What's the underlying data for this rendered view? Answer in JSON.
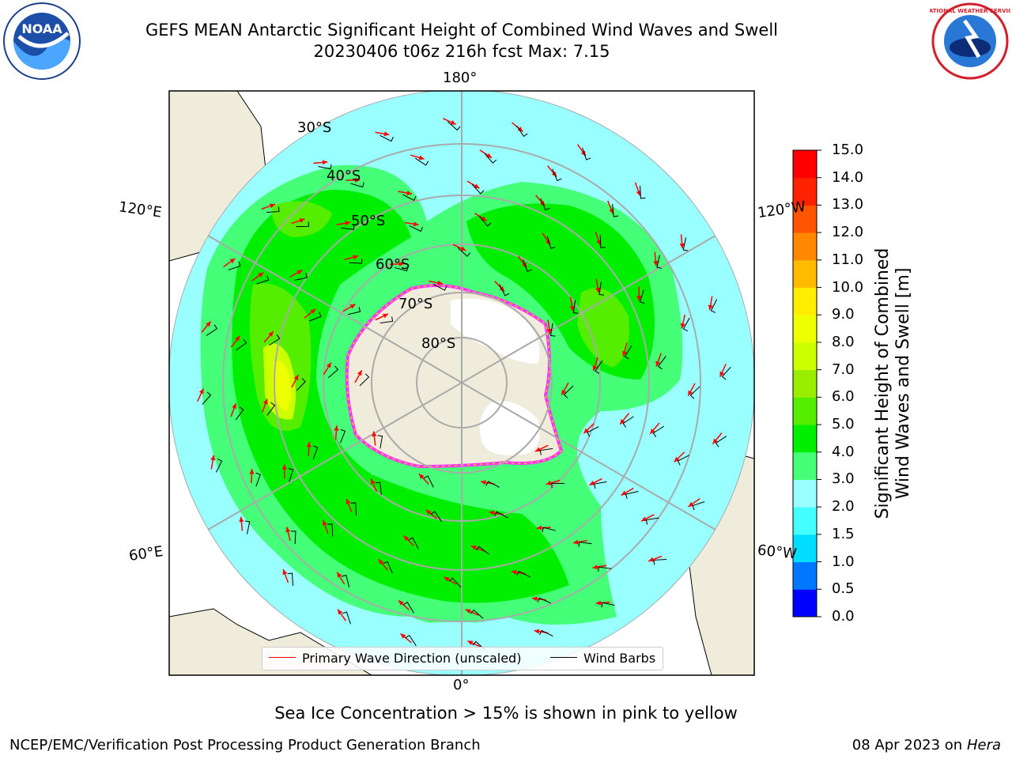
{
  "header": {
    "title_line1": "GEFS MEAN Antarctic Significant Height of Combined Wind Waves and Swell",
    "title_line2": "20230406 t06z 216h fcst   Max: 7.15"
  },
  "map": {
    "projection": "south polar stereographic",
    "longitude_labels": [
      "180°",
      "120°E",
      "120°W",
      "60°E",
      "60°W",
      "0°"
    ],
    "latitude_labels": [
      "30°S",
      "40°S",
      "50°S",
      "60°S",
      "70°S",
      "80°S"
    ],
    "legend": {
      "primary_wave_label": "Primary Wave Direction (unscaled)",
      "wind_barb_label": "Wind Barbs",
      "primary_wave_color": "#ff0000",
      "wind_barb_color": "#000000"
    },
    "sea_ice_colors": [
      "#ff33ff",
      "#ff99ff",
      "#ffcc00"
    ],
    "land_color": "#efecdc",
    "antarctic_ice_color": "#ffffff"
  },
  "colorbar": {
    "label_line1": "Significant Height of Combined",
    "label_line2": "Wind Waves and Swell [m]",
    "ticks": [
      "0.0",
      "0.5",
      "1.0",
      "1.5",
      "2.0",
      "3.0",
      "4.0",
      "5.0",
      "6.0",
      "7.0",
      "8.0",
      "9.0",
      "10.0",
      "11.0",
      "12.0",
      "13.0",
      "14.0",
      "15.0"
    ],
    "colors": [
      "#0000ff",
      "#0077ff",
      "#00ddff",
      "#44ffff",
      "#99ffff",
      "#44ff77",
      "#00ee00",
      "#55ee00",
      "#99ee00",
      "#ccff00",
      "#eeff00",
      "#ffee00",
      "#ffbb00",
      "#ff8800",
      "#ff5500",
      "#ff2200",
      "#ff0000"
    ]
  },
  "footer": {
    "sea_ice_note": "Sea Ice Concentration > 15% is shown in pink to yellow",
    "credit_left": "NCEP/EMC/Verification Post Processing Product Generation Branch",
    "credit_date": "08 Apr 2023 on ",
    "credit_machine": "Hera"
  },
  "logos": {
    "noaa": "NOAA",
    "nws": "NATIONAL WEATHER SERVICE"
  }
}
